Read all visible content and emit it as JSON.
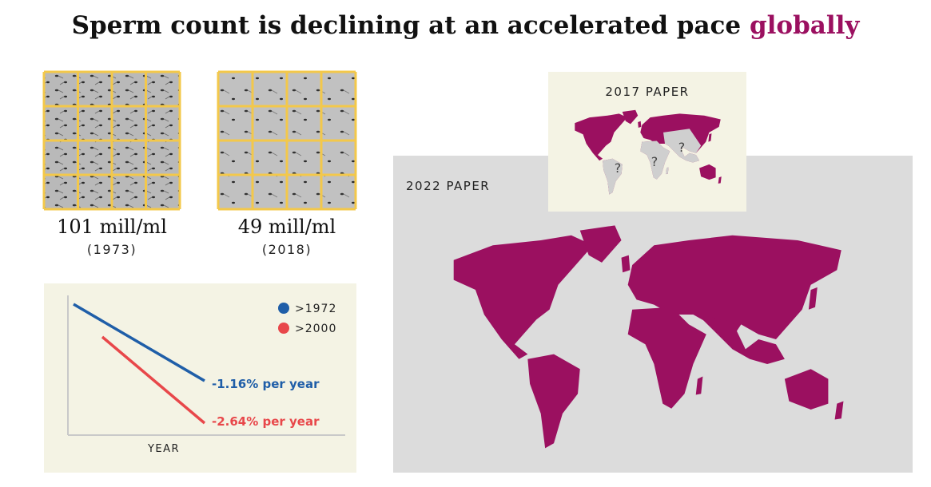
{
  "title": {
    "main": "Sperm count is declining at an accelerated pace",
    "highlight": "globally"
  },
  "samples": [
    {
      "count": "101 mill/ml",
      "year": "(1973)"
    },
    {
      "count": "49 mill/ml",
      "year": "(2018)"
    }
  ],
  "trend": {
    "legend": [
      ">1972",
      ">2000"
    ],
    "rates": [
      "-1.16% per year",
      "-2.64% per year"
    ],
    "x_label": "YEAR"
  },
  "maps": {
    "2017": {
      "label": "2017 PAPER",
      "unknown": "?"
    },
    "2022": "2022 PAPER"
  }
}
